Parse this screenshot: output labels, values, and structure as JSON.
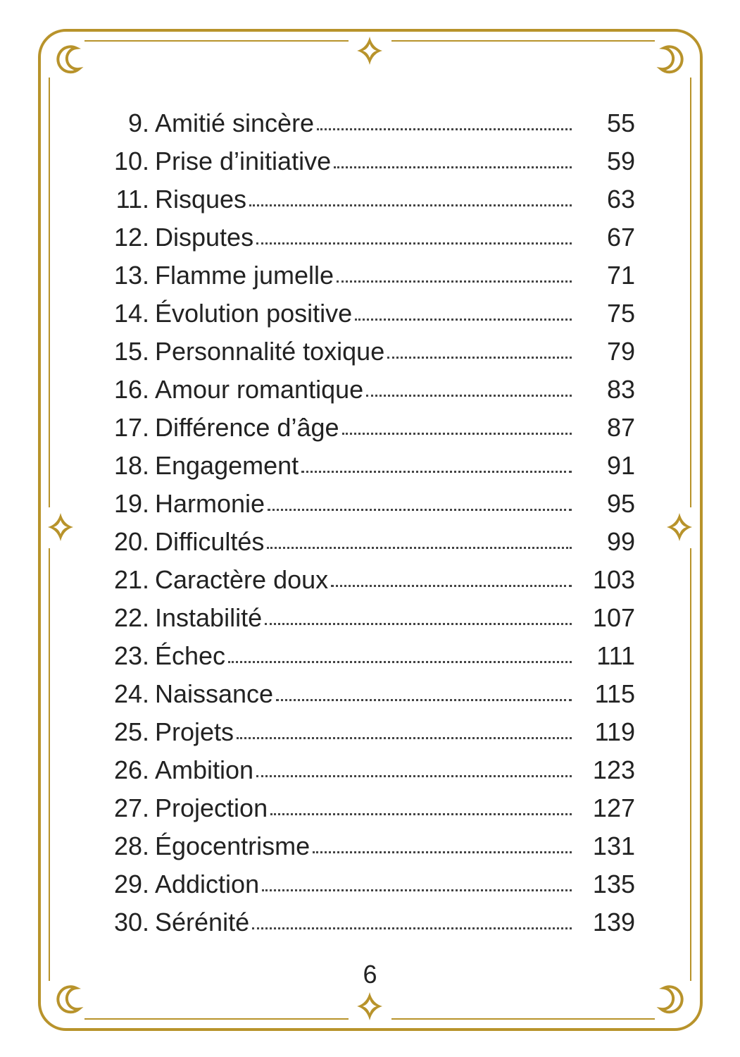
{
  "toc": {
    "entries": [
      {
        "number": "9.",
        "title": "Amitié sincère",
        "page": "55"
      },
      {
        "number": "10.",
        "title": "Prise d’initiative",
        "page": "59"
      },
      {
        "number": "11.",
        "title": "Risques",
        "page": "63"
      },
      {
        "number": "12.",
        "title": "Disputes",
        "page": "67"
      },
      {
        "number": "13.",
        "title": "Flamme jumelle",
        "page": "71"
      },
      {
        "number": "14.",
        "title": "Évolution positive",
        "page": "75"
      },
      {
        "number": "15.",
        "title": "Personnalité toxique",
        "page": "79"
      },
      {
        "number": "16.",
        "title": "Amour romantique",
        "page": "83"
      },
      {
        "number": "17.",
        "title": "Différence d’âge",
        "page": "87"
      },
      {
        "number": "18.",
        "title": "Engagement",
        "page": "91"
      },
      {
        "number": "19.",
        "title": "Harmonie",
        "page": "95"
      },
      {
        "number": "20.",
        "title": "Difficultés",
        "page": "99"
      },
      {
        "number": "21.",
        "title": "Caractère doux",
        "page": "103"
      },
      {
        "number": "22.",
        "title": "Instabilité",
        "page": "107"
      },
      {
        "number": "23.",
        "title": "Échec",
        "page": "111"
      },
      {
        "number": "24.",
        "title": "Naissance",
        "page": "115"
      },
      {
        "number": "25.",
        "title": "Projets",
        "page": "119"
      },
      {
        "number": "26.",
        "title": "Ambition",
        "page": "123"
      },
      {
        "number": "27.",
        "title": "Projection",
        "page": "127"
      },
      {
        "number": "28.",
        "title": "Égocentrisme",
        "page": "131"
      },
      {
        "number": "29.",
        "title": "Addiction",
        "page": "135"
      },
      {
        "number": "30.",
        "title": "Sérénité",
        "page": "139"
      }
    ]
  },
  "footer": {
    "page_number": "6"
  }
}
